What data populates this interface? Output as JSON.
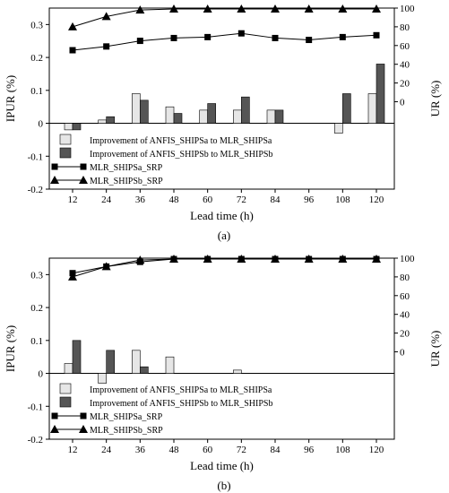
{
  "chart_data": [
    {
      "type": "bar",
      "caption": "(a)",
      "xlabel": "Lead time (h)",
      "ylabel": "IPUR (%)",
      "y2label": "UR (%)",
      "categories": [
        "12",
        "24",
        "36",
        "48",
        "60",
        "72",
        "84",
        "96",
        "108",
        "120"
      ],
      "ylim": [
        -0.2,
        0.35
      ],
      "yticks": [
        "-0.2",
        "-0.1",
        "0",
        "0.1",
        "0.2",
        "0.3"
      ],
      "y2lim": [
        -93.33,
        100
      ],
      "y2ticks": [
        "0",
        "20",
        "40",
        "60",
        "80",
        "100"
      ],
      "legend_position": "lower-left",
      "series": [
        {
          "name": "Improvement of ANFIS_SHIPSa to MLR_SHIPSa",
          "kind": "bar",
          "color": "#e6e6e6",
          "values": [
            -0.02,
            0.01,
            0.09,
            0.05,
            0.04,
            0.04,
            0.04,
            0,
            -0.03,
            0.09
          ]
        },
        {
          "name": "Improvement of ANFIS_SHIPSb to MLR_SHIPSb",
          "kind": "bar",
          "color": "#555555",
          "values": [
            -0.02,
            0.02,
            0.07,
            0.03,
            0.06,
            0.08,
            0.04,
            0,
            0.09,
            0.18
          ]
        },
        {
          "name": "MLR_SHIPSa_SRP",
          "kind": "line",
          "marker": "square",
          "axis": "right",
          "values": [
            55,
            59,
            65,
            68,
            69,
            73,
            68,
            66,
            69,
            71
          ]
        },
        {
          "name": "MLR_SHIPSb_SRP",
          "kind": "line",
          "marker": "triangle",
          "axis": "right",
          "values": [
            80,
            91,
            98,
            99,
            99,
            99,
            99,
            99,
            99,
            99
          ]
        }
      ]
    },
    {
      "type": "bar",
      "caption": "(b)",
      "xlabel": "Lead time (h)",
      "ylabel": "IPUR (%)",
      "y2label": "UR (%)",
      "categories": [
        "12",
        "24",
        "36",
        "48",
        "60",
        "72",
        "84",
        "96",
        "108",
        "120"
      ],
      "ylim": [
        -0.2,
        0.35
      ],
      "yticks": [
        "-0.2",
        "-0.1",
        "0",
        "0.1",
        "0.2",
        "0.3"
      ],
      "y2lim": [
        -93.33,
        100
      ],
      "y2ticks": [
        "0",
        "20",
        "40",
        "60",
        "80",
        "100"
      ],
      "legend_position": "lower-left",
      "series": [
        {
          "name": "Improvement of ANFIS_SHIPSa to MLR_SHIPSa",
          "kind": "bar",
          "color": "#e6e6e6",
          "values": [
            0.03,
            -0.03,
            0.07,
            0.05,
            0,
            0.01,
            0,
            0,
            0,
            0
          ]
        },
        {
          "name": "Improvement of ANFIS_SHIPSb to MLR_SHIPSb",
          "kind": "bar",
          "color": "#555555",
          "values": [
            0.1,
            0.07,
            0.02,
            0,
            0,
            0,
            0,
            0,
            0,
            0
          ]
        },
        {
          "name": "MLR_SHIPSa_SRP",
          "kind": "line",
          "marker": "square",
          "axis": "right",
          "values": [
            84,
            91,
            96,
            99,
            99,
            99,
            99,
            99,
            99,
            99
          ]
        },
        {
          "name": "MLR_SHIPSb_SRP",
          "kind": "line",
          "marker": "triangle",
          "axis": "right",
          "values": [
            80,
            91,
            98,
            99,
            99,
            99,
            99,
            99,
            99,
            99
          ]
        }
      ]
    }
  ]
}
